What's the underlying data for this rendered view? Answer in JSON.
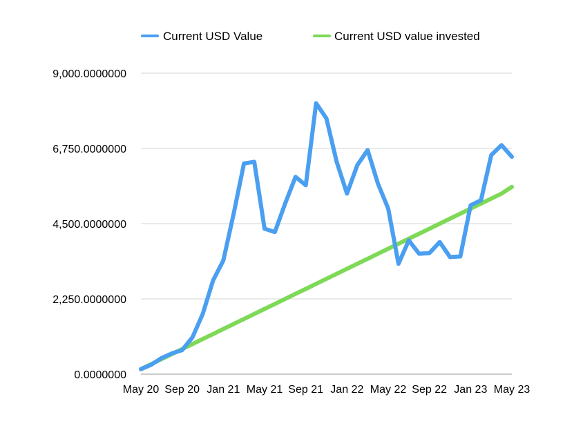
{
  "chart_data": {
    "type": "line",
    "title": "",
    "xlabel": "",
    "ylabel": "",
    "ylim": [
      0,
      9000
    ],
    "yticks": [
      0,
      2250,
      4500,
      6750,
      9000
    ],
    "ytick_labels": [
      "0.0000000",
      "2,250.0000000",
      "4,500.0000000",
      "6,750.0000000",
      "9,000.0000000"
    ],
    "xtick_labels": [
      "May 20",
      "Sep 20",
      "Jan 21",
      "May 21",
      "Sep 21",
      "Jan 22",
      "May 22",
      "Sep 22",
      "Jan 23",
      "May 23"
    ],
    "x": [
      "May 20",
      "Jun 20",
      "Jul 20",
      "Aug 20",
      "Sep 20",
      "Oct 20",
      "Nov 20",
      "Dec 20",
      "Jan 21",
      "Feb 21",
      "Mar 21",
      "Apr 21",
      "May 21",
      "Jun 21",
      "Jul 21",
      "Aug 21",
      "Sep 21",
      "Oct 21",
      "Nov 21",
      "Dec 21",
      "Jan 22",
      "Feb 22",
      "Mar 22",
      "Apr 22",
      "May 22",
      "Jun 22",
      "Jul 22",
      "Aug 22",
      "Sep 22",
      "Oct 22",
      "Nov 22",
      "Dec 22",
      "Jan 23",
      "Feb 23",
      "Mar 23",
      "Apr 23",
      "May 23"
    ],
    "grid": true,
    "legend_position": "top",
    "series": [
      {
        "name": "Current USD Value",
        "color": "#4a9ff0",
        "values": [
          150,
          280,
          480,
          620,
          720,
          1100,
          1800,
          2800,
          3400,
          4800,
          6300,
          6350,
          4350,
          4250,
          5100,
          5900,
          5650,
          8100,
          7650,
          6350,
          5400,
          6250,
          6700,
          5700,
          4950,
          3300,
          4000,
          3600,
          3620,
          3950,
          3500,
          3520,
          5050,
          5200,
          6550,
          6850,
          6500
        ]
      },
      {
        "name": "Current USD value invested",
        "color": "#7ed957",
        "values": [
          150,
          300,
          450,
          600,
          750,
          900,
          1050,
          1200,
          1350,
          1500,
          1650,
          1800,
          1950,
          2100,
          2250,
          2400,
          2550,
          2700,
          2850,
          3000,
          3150,
          3300,
          3450,
          3600,
          3750,
          3900,
          4050,
          4200,
          4350,
          4500,
          4650,
          4800,
          4950,
          5100,
          5250,
          5400,
          5600
        ]
      }
    ]
  }
}
